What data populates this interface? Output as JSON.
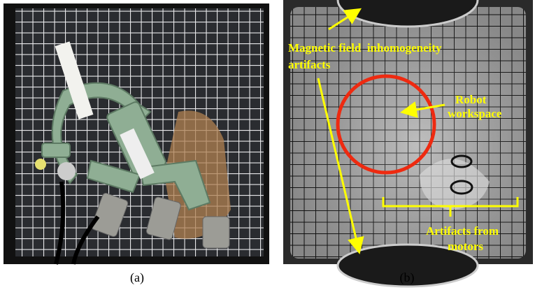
{
  "panels": [
    {
      "label": "(a)"
    },
    {
      "label": "(b)",
      "annotations": [
        "Magnetic field  inhomogeneity",
        "artifacts",
        "Robot",
        "workspace",
        "Artifacts from",
        "motors"
      ]
    }
  ]
}
